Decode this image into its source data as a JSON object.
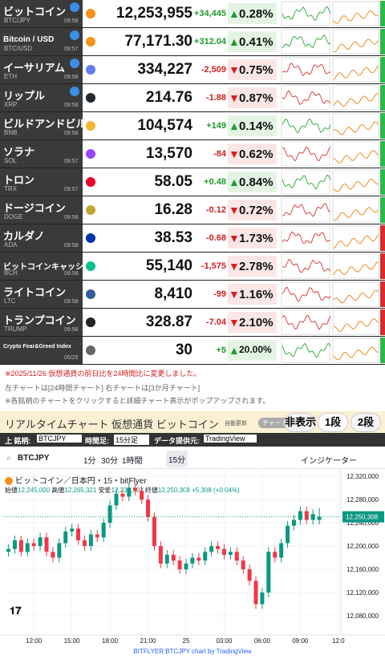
{
  "ticker_table": {
    "rows": [
      {
        "name": "ビットコイン",
        "ticker": "BTC/JPY",
        "time": "09:58",
        "price": "12,253,955",
        "change": "+34,445",
        "arrow": "▲",
        "pct": "0.28%",
        "up": true,
        "trend_color": "#2db84a"
      },
      {
        "name": "Bitcoin / USD",
        "ticker": "BTC/USD",
        "time": "09:57",
        "price": "77,171.30",
        "change": "+312.04",
        "arrow": "▲",
        "pct": "0.41%",
        "up": true,
        "trend_color": "#2db84a"
      },
      {
        "name": "イーサリアム",
        "ticker": "ETH",
        "time": "09:58",
        "price": "334,227",
        "change": "-2,509",
        "arrow": "▼",
        "pct": "0.75%",
        "up": false,
        "trend_color": "#2db84a"
      },
      {
        "name": "リップル",
        "ticker": "XRP",
        "time": "09:58",
        "price": "214.76",
        "change": "-1.88",
        "arrow": "▼",
        "pct": "0.87%",
        "up": false,
        "trend_color": "#2db84a"
      },
      {
        "name": "ビルドアンドビルド",
        "ticker": "BNB",
        "time": "09:58",
        "price": "104,574",
        "change": "+149",
        "arrow": "▲",
        "pct": "0.14%",
        "up": true,
        "trend_color": "#2db84a"
      },
      {
        "name": "ソラナ",
        "ticker": "SOL",
        "time": "09:57",
        "price": "13,570",
        "change": "-84",
        "arrow": "▼",
        "pct": "0.62%",
        "up": false,
        "trend_color": "#2db84a"
      },
      {
        "name": "トロン",
        "ticker": "TRX",
        "time": "09:57",
        "price": "58.05",
        "change": "+0.48",
        "arrow": "▲",
        "pct": "0.84%",
        "up": true,
        "trend_color": "#2db84a"
      },
      {
        "name": "ドージコイン",
        "ticker": "DOGE",
        "time": "09:58",
        "price": "16.28",
        "change": "-0.12",
        "arrow": "▼",
        "pct": "0.72%",
        "up": false,
        "trend_color": "#2db84a"
      },
      {
        "name": "カルダノ",
        "ticker": "ADA",
        "time": "09:58",
        "price": "38.53",
        "change": "-0.68",
        "arrow": "▼",
        "pct": "1.73%",
        "up": false,
        "trend_color": "#d92b2b"
      },
      {
        "name": "ビットコインキャッシュ",
        "ticker": "BCH",
        "time": "09:58",
        "price": "55,140",
        "change": "-1,575",
        "arrow": "▼",
        "pct": "2.78%",
        "up": false,
        "trend_color": "#d92b2b"
      },
      {
        "name": "ライトコイン",
        "ticker": "LTC",
        "time": "09:58",
        "price": "8,410",
        "change": "-99",
        "arrow": "▼",
        "pct": "1.16%",
        "up": false,
        "trend_color": "#d92b2b"
      },
      {
        "name": "トランプコイン",
        "ticker": "TRUMP",
        "time": "09:58",
        "price": "328.87",
        "change": "-7.04",
        "arrow": "▼",
        "pct": "2.10%",
        "up": false,
        "trend_color": "#d92b2b"
      },
      {
        "name": "Crypto Fear&Greed Index",
        "time": "05/25",
        "price": "30",
        "change": "+5",
        "arrow": "▲",
        "pct": "20.00%",
        "up": true,
        "trend_color": "#2db84a"
      }
    ]
  },
  "notes": [
    "※2025/11/26 仮想通貨の前日比を24時間比に変更しました。",
    "左チャートは[24時間チャート] 右チャートは[3か月チャート]",
    "※各銘柄のチャートをクリックすると詳細チャート表示がポップアップされます。"
  ],
  "chart_panel": {
    "title": "リアルタイムチャート 仮想通貨 ビットコイン",
    "auto": "自動更新",
    "chart_label": "チャート",
    "buttons": [
      "非表示",
      "1段",
      "2段"
    ],
    "controls": {
      "symbol_label": "上 銘柄:",
      "symbol": "BTCJPY",
      "interval_label": "時間足:",
      "interval": "15分足",
      "provider_label": "データ提供元:",
      "provider": "TradingView"
    },
    "toolbar": {
      "symbol": "BTCJPY",
      "intervals": [
        "1分",
        "30分",
        "1時間",
        "15分"
      ],
      "indicator": "インジケーター"
    },
    "legend": {
      "title": "ビットコイン／日本円・15・bitFlyer",
      "open_label": "始値",
      "open": "12,245,000",
      "high_label": "高値",
      "high": "12,265,321",
      "low_label": "安値",
      "low": "12,237,502",
      "close_label": "終値",
      "close": "12,250,308",
      "change": "+5,308 (+0.04%)"
    },
    "footer": "BITFLYER:BTCJPY chart by TradingView"
  },
  "chart_data": {
    "type": "candlestick",
    "up_color": "#089981",
    "down_color": "#f23645",
    "grid": true,
    "x": [
      -2,
      -1.5,
      -1,
      -0.5,
      0,
      0.5,
      1,
      1.5,
      2,
      2.5,
      3,
      3.5,
      4,
      4.5,
      5,
      5.5,
      6,
      6.5,
      7,
      7.5,
      8,
      8.5,
      9,
      9.5,
      10,
      10.5,
      11,
      11.5,
      12,
      12.5,
      13,
      13.5,
      14,
      14.5,
      15,
      15.5,
      16,
      16.5,
      17,
      17.5,
      18,
      18.5,
      19,
      19.5,
      20,
      20.5,
      21,
      21.5,
      22,
      22.5
    ],
    "open": [
      12190000,
      12195000,
      12210000,
      12190000,
      12205000,
      12200000,
      12215000,
      12190000,
      12180000,
      12205000,
      12225000,
      12230000,
      12210000,
      12200000,
      12220000,
      12215000,
      12240000,
      12270000,
      12290000,
      12285000,
      12300000,
      12295000,
      12280000,
      12250000,
      12200000,
      12170000,
      12185000,
      12175000,
      12160000,
      12170000,
      12180000,
      12175000,
      12190000,
      12200000,
      12195000,
      12185000,
      12190000,
      12175000,
      12160000,
      12140000,
      12100000,
      12120000,
      12190000,
      12180000,
      12205000,
      12235000,
      12245000,
      12260000,
      12245000,
      12245000
    ],
    "high": [
      12203000,
      12218000,
      12218000,
      12213000,
      12213000,
      12223000,
      12223000,
      12198000,
      12213000,
      12233000,
      12238000,
      12238000,
      12218000,
      12228000,
      12228000,
      12248000,
      12278000,
      12298000,
      12298000,
      12308000,
      12308000,
      12303000,
      12288000,
      12258000,
      12208000,
      12193000,
      12193000,
      12183000,
      12178000,
      12188000,
      12188000,
      12198000,
      12208000,
      12208000,
      12203000,
      12198000,
      12198000,
      12183000,
      12168000,
      12148000,
      12128000,
      12198000,
      12198000,
      12213000,
      12243000,
      12253000,
      12268000,
      12268000,
      12263000,
      12265321
    ],
    "low": [
      12182000,
      12187000,
      12182000,
      12182000,
      12192000,
      12192000,
      12182000,
      12172000,
      12172000,
      12197000,
      12217000,
      12202000,
      12192000,
      12192000,
      12207000,
      12207000,
      12232000,
      12262000,
      12277000,
      12277000,
      12287000,
      12272000,
      12242000,
      12192000,
      12162000,
      12162000,
      12167000,
      12152000,
      12152000,
      12162000,
      12167000,
      12167000,
      12182000,
      12187000,
      12177000,
      12177000,
      12167000,
      12152000,
      12132000,
      12092000,
      12092000,
      12112000,
      12172000,
      12172000,
      12197000,
      12227000,
      12237000,
      12237000,
      12237000,
      12237502
    ],
    "close": [
      12195000,
      12210000,
      12190000,
      12205000,
      12200000,
      12215000,
      12190000,
      12180000,
      12205000,
      12225000,
      12230000,
      12210000,
      12200000,
      12220000,
      12215000,
      12240000,
      12270000,
      12290000,
      12285000,
      12300000,
      12295000,
      12280000,
      12250000,
      12200000,
      12170000,
      12185000,
      12175000,
      12160000,
      12170000,
      12180000,
      12175000,
      12190000,
      12200000,
      12195000,
      12185000,
      12190000,
      12175000,
      12160000,
      12140000,
      12100000,
      12120000,
      12190000,
      12180000,
      12205000,
      12235000,
      12245000,
      12260000,
      12245000,
      12255000,
      12250308
    ],
    "price_label": "12,250,308",
    "xlim": [
      -2.35,
      24.2
    ],
    "ylim": [
      12047000,
      12334000
    ],
    "xticks": [
      {
        "value": 0,
        "label": "12:00"
      },
      {
        "value": 3,
        "label": "15:00"
      },
      {
        "value": 6,
        "label": "18:00"
      },
      {
        "value": 9,
        "label": "21:00"
      },
      {
        "value": 12,
        "label": "25"
      },
      {
        "value": 15,
        "label": "03:00"
      },
      {
        "value": 18,
        "label": "06:00"
      },
      {
        "value": 21,
        "label": "09:00"
      },
      {
        "value": 24,
        "label": "12:0"
      }
    ],
    "yticks": [
      {
        "value": 12320000,
        "label": "12,320,000"
      },
      {
        "value": 12280000,
        "label": "12,280,000"
      },
      {
        "value": 12240000,
        "label": "12,240,000"
      },
      {
        "value": 12200000,
        "label": "12,200,000"
      },
      {
        "value": 12160000,
        "label": "12,160,000"
      },
      {
        "value": 12120000,
        "label": "12,120,000"
      },
      {
        "value": 12080000,
        "label": "12,080,000"
      }
    ]
  }
}
